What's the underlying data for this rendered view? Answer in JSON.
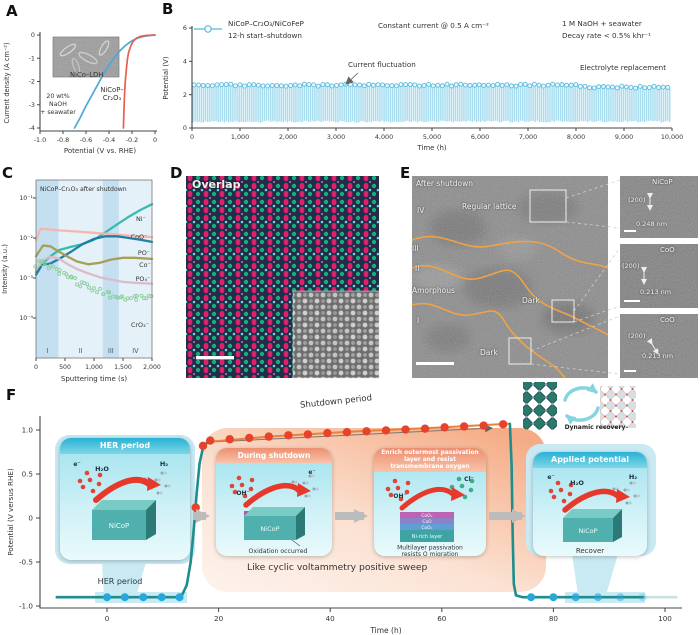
{
  "panels": {
    "A": {
      "label": "A",
      "curve1_label": "NiCo–LDH",
      "curve2_label_lines": [
        "NiCoP–",
        "Cr₂O₃"
      ],
      "electrolyte_lines": [
        "20 wt%",
        "NaOH",
        "+ seawater"
      ]
    },
    "B": {
      "label": "B",
      "legend_line1": "NiCoP–Cr₂O₃/NiCoFeP",
      "legend_line2": "12-h start–shutdown",
      "note_center": "Constant current @ 0.5 A cm⁻²",
      "note_right_line1": "1 M NaOH + seawater",
      "note_right_line2": "Decay rate < 0.5% khr⁻¹",
      "ann_fluctuation": "Current fluctuation",
      "ann_electrolyte": "Electrolyte replacement"
    },
    "C": {
      "label": "C"
    },
    "D": {
      "label": "D",
      "overlay": "Overlap"
    },
    "E": {
      "label": "E",
      "main_labels": {
        "after_shutdown": "After shutdown",
        "regular_lattice": "Regular lattice",
        "r4": "IV",
        "r3": "III",
        "r2": "II",
        "amorphous": "Amorphous",
        "r1": "I",
        "dark1": "Dark",
        "dark2": "Dark"
      },
      "insets": [
        {
          "name": "NiCoP",
          "plane": "(200)",
          "spacing": "0.248 nm"
        },
        {
          "name": "CoO",
          "plane": "(200)",
          "spacing": "0.213 nm"
        },
        {
          "name": "CoO",
          "plane": "(200)",
          "spacing": "0.213 nm"
        }
      ]
    },
    "F": {
      "label": "F",
      "shutdown_label": "Shutdown period",
      "her_label": "HER period",
      "cv_label": "Like cyclic voltammetry positive sweep",
      "dynamic_label": "Dynamic recovery",
      "cards": [
        {
          "title": "HER period",
          "mols": [
            "e⁻",
            "H₂O",
            "H₂"
          ],
          "block": "NiCoP",
          "note": ""
        },
        {
          "title": "During shutdown",
          "mols": [
            "OH⁻",
            "e⁻"
          ],
          "block": "NiCoP",
          "layer": "CoOₓ",
          "note": "Oxidation occurred"
        },
        {
          "title_lines": [
            "Enrich outermost passivation",
            "layer and resist",
            "transmembrane oxygen"
          ],
          "mols": [
            "OH⁻",
            "Cl⁻"
          ],
          "layers": [
            "CoOₓ",
            "CoO",
            "CoOₓ",
            "Ni-rich layer"
          ],
          "note_lines": [
            "Multilayer passivation",
            "resists O migration"
          ]
        },
        {
          "title": "Applied potential",
          "mols": [
            "e⁻",
            "H₂O",
            "H₂"
          ],
          "block": "NiCoP",
          "note": "Recover"
        }
      ]
    }
  },
  "chart_data": [
    {
      "id": "A",
      "type": "line",
      "xlabel": "Potential (V vs. RHE)",
      "ylabel": "Current density (A cm⁻²)",
      "xlim": [
        -1.0,
        0
      ],
      "ylim": [
        -4,
        0
      ],
      "x_ticks": [
        "-1.0",
        "-0.8",
        "-0.6",
        "-0.4",
        "-0.2",
        "0"
      ],
      "y_ticks": [
        "0",
        "-1",
        "-2",
        "-3",
        "-4"
      ],
      "series": [
        {
          "name": "NiCo–LDH",
          "color": "#4aa8d8",
          "x": [
            -0.7,
            -0.65,
            -0.6,
            -0.55,
            -0.5,
            -0.45,
            -0.4,
            -0.35,
            -0.3,
            -0.25,
            -0.2,
            -0.15,
            -0.1,
            -0.05,
            0
          ],
          "y": [
            -4,
            -3.55,
            -3.05,
            -2.6,
            -2.15,
            -1.7,
            -1.3,
            -0.95,
            -0.65,
            -0.42,
            -0.25,
            -0.13,
            -0.06,
            -0.02,
            0
          ]
        },
        {
          "name": "NiCoP–Cr₂O₃",
          "color": "#e8604c",
          "x": [
            -0.275,
            -0.27,
            -0.265,
            -0.26,
            -0.25,
            -0.24,
            -0.23,
            -0.21,
            -0.19,
            -0.16,
            -0.12,
            -0.08,
            0
          ],
          "y": [
            -4,
            -3.2,
            -2.6,
            -2.1,
            -1.5,
            -1.05,
            -0.75,
            -0.45,
            -0.27,
            -0.13,
            -0.05,
            -0.02,
            0
          ]
        }
      ]
    },
    {
      "id": "B",
      "type": "line-dense",
      "xlabel": "Time (h)",
      "ylabel": "Potential (V)",
      "xlim": [
        0,
        10000
      ],
      "ylim": [
        0,
        6
      ],
      "x_ticks": [
        "0",
        "1,000",
        "2,000",
        "3,000",
        "4,000",
        "5,000",
        "6,000",
        "7,000",
        "8,000",
        "9,000",
        "10,000"
      ],
      "y_ticks": [
        "0",
        "2",
        "4",
        "6"
      ],
      "signal": {
        "cycle_h": 12,
        "low_V": 0.35,
        "high_V": 2.6,
        "replacement_h": 8050,
        "post_replacement_high_V": 2.47,
        "color": "#a9dcee",
        "marker_color": "#58bbdd"
      }
    },
    {
      "id": "C",
      "type": "line-log",
      "title": "NiCoP–Cr₂O₃ after shutdown",
      "xlabel": "Sputtering time (s)",
      "ylabel": "Intensity (a.u.)",
      "xlim": [
        0,
        2000
      ],
      "x_ticks": [
        "0",
        "500",
        "1,000",
        "1,500",
        "2,000"
      ],
      "y_ticks": [
        "10⁻⁴",
        "10⁻³",
        "10⁻²",
        "10⁻¹"
      ],
      "regions": [
        {
          "label": "I",
          "x0": 0,
          "x1": 390,
          "shade": "dark"
        },
        {
          "label": "II",
          "x0": 390,
          "x1": 1150,
          "shade": "light"
        },
        {
          "label": "III",
          "x0": 1150,
          "x1": 1430,
          "shade": "dark"
        },
        {
          "label": "IV",
          "x0": 1430,
          "x1": 2000,
          "shade": "light"
        }
      ],
      "series": [
        {
          "name": "Ni⁻",
          "color": "#2fb8aa",
          "style": "line",
          "x": [
            0,
            100,
            250,
            400,
            600,
            800,
            1000,
            1200,
            1400,
            1600,
            1800,
            2000
          ],
          "y": [
            0.0014,
            0.0022,
            0.0035,
            0.005,
            0.006,
            0.007,
            0.009,
            0.014,
            0.022,
            0.034,
            0.05,
            0.07
          ]
        },
        {
          "name": "CoO⁻",
          "color": "#f5b3ab",
          "style": "line",
          "x": [
            0,
            80,
            200,
            400,
            700,
            1000,
            1300,
            1600,
            1800,
            2000
          ],
          "y": [
            0.009,
            0.017,
            0.0165,
            0.0155,
            0.0145,
            0.0135,
            0.0125,
            0.0115,
            0.011,
            0.0105
          ]
        },
        {
          "name": "PO⁻",
          "color": "#1779a0",
          "style": "line",
          "x": [
            0,
            100,
            250,
            400,
            600,
            800,
            1000,
            1200,
            1400,
            1600,
            1800,
            2000
          ],
          "y": [
            0.0012,
            0.0021,
            0.0023,
            0.003,
            0.0045,
            0.007,
            0.0095,
            0.011,
            0.011,
            0.01,
            0.009,
            0.008
          ]
        },
        {
          "name": "Co⁻",
          "color": "#a59a50",
          "style": "line",
          "x": [
            0,
            120,
            250,
            400,
            550,
            700,
            900,
            1100,
            1300,
            1500,
            1700,
            2000
          ],
          "y": [
            0.0035,
            0.0065,
            0.0062,
            0.0045,
            0.0034,
            0.0026,
            0.0022,
            0.0024,
            0.0029,
            0.0032,
            0.0032,
            0.003
          ]
        },
        {
          "name": "PO₄⁻",
          "color": "#dcb8c4",
          "style": "line",
          "x": [
            0,
            120,
            250,
            400,
            550,
            700,
            900,
            1100,
            1300,
            1500,
            1700,
            2000
          ],
          "y": [
            0.0016,
            0.0028,
            0.0034,
            0.003,
            0.0022,
            0.0017,
            0.0013,
            0.00105,
            0.0009,
            0.0008,
            0.00076,
            0.00072
          ]
        },
        {
          "name": "CrO₃⁻",
          "color": "#8fcf9f",
          "style": "scatter",
          "x": [
            0,
            150,
            300,
            500,
            700,
            900,
            1100,
            1300,
            1500,
            1700,
            2000
          ],
          "y": [
            0.0024,
            0.0021,
            0.0017,
            0.00115,
            0.0008,
            0.0006,
            0.00046,
            0.00038,
            0.00032,
            0.0003,
            0.00034
          ]
        }
      ]
    },
    {
      "id": "F",
      "type": "line-scatter",
      "xlabel": "Time (h)",
      "ylabel": "Potential (V versus RHE)",
      "xlim": [
        -10,
        105
      ],
      "ylim": [
        -1.0,
        1.15
      ],
      "x_ticks": [
        0,
        20,
        40,
        60,
        80,
        100
      ],
      "y_ticks": [
        "1.0",
        "0.5",
        "0",
        "-0.5",
        "-1.0"
      ],
      "curve_teal_rise": [
        [
          -9,
          -0.9
        ],
        [
          4,
          -0.9
        ],
        [
          12.5,
          -0.9
        ],
        [
          13.5,
          -0.87
        ],
        [
          14.3,
          -0.76
        ],
        [
          15,
          -0.5
        ],
        [
          15.6,
          -0.1
        ],
        [
          16.1,
          0.3
        ],
        [
          16.6,
          0.62
        ],
        [
          17.2,
          0.8
        ],
        [
          18,
          0.86
        ]
      ],
      "curve_orange": [
        [
          18,
          0.865
        ],
        [
          30,
          0.93
        ],
        [
          45,
          0.985
        ],
        [
          60,
          1.03
        ],
        [
          72,
          1.07
        ]
      ],
      "curve_teal_drop": [
        [
          72.2,
          1.07
        ],
        [
          72.5,
          0.6
        ],
        [
          72.7,
          -0.2
        ],
        [
          72.9,
          -0.75
        ],
        [
          73.3,
          -0.88
        ],
        [
          74.5,
          -0.9
        ],
        [
          96,
          -0.9
        ]
      ],
      "dots_blue_start": [
        0,
        3.2,
        6.5,
        9.8,
        13
      ],
      "dots_blue_end": [
        [
          76,
          1
        ],
        [
          80,
          1
        ],
        [
          84,
          0.85
        ],
        [
          88,
          0.65
        ],
        [
          92,
          0.45
        ],
        [
          96,
          0.25
        ]
      ],
      "dots_red": [
        [
          15.9,
          0.12
        ],
        [
          17.2,
          0.82
        ],
        [
          18.5,
          0.88
        ],
        [
          22,
          0.895
        ],
        [
          25.5,
          0.91
        ],
        [
          29,
          0.925
        ],
        [
          32.5,
          0.94
        ],
        [
          36,
          0.95
        ],
        [
          39.5,
          0.965
        ],
        [
          43,
          0.975
        ],
        [
          46.5,
          0.985
        ],
        [
          50,
          0.995
        ],
        [
          53.5,
          1.005
        ],
        [
          57,
          1.015
        ],
        [
          60.5,
          1.03
        ],
        [
          64,
          1.04
        ],
        [
          67.5,
          1.05
        ],
        [
          71,
          1.065
        ]
      ]
    }
  ]
}
